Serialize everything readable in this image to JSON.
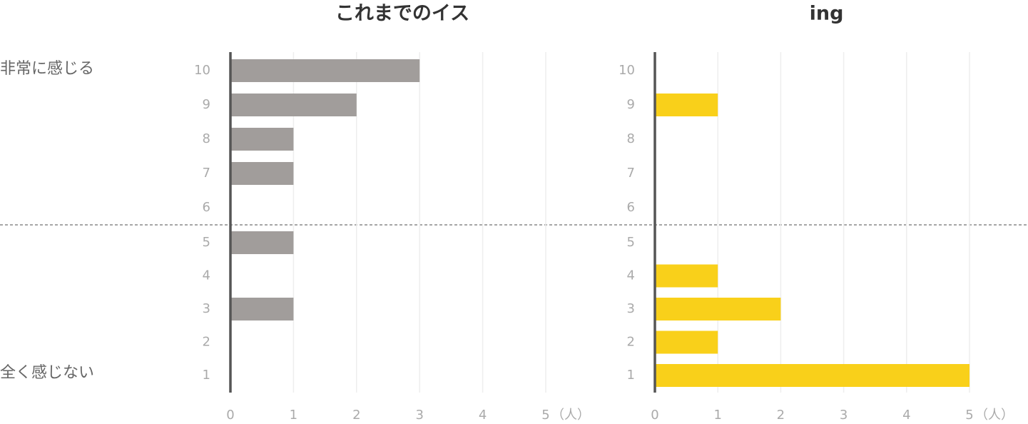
{
  "scale_labels": {
    "high": "非常に感じる",
    "low": "全く感じない"
  },
  "chart_data": [
    {
      "type": "bar",
      "orientation": "horizontal",
      "title": "これまでのイス",
      "categories": [
        "10",
        "9",
        "8",
        "7",
        "6",
        "5",
        "4",
        "3",
        "2",
        "1"
      ],
      "values": [
        3,
        2,
        1,
        1,
        0,
        1,
        0,
        1,
        0,
        0
      ],
      "color": "#a19d9b",
      "xlim": [
        0,
        5
      ],
      "xticks": [
        0,
        1,
        2,
        3,
        4,
        5
      ],
      "x_unit": "（人）",
      "grid": true
    },
    {
      "type": "bar",
      "orientation": "horizontal",
      "title": "ing",
      "categories": [
        "10",
        "9",
        "8",
        "7",
        "6",
        "5",
        "4",
        "3",
        "2",
        "1"
      ],
      "values": [
        0,
        1,
        0,
        0,
        0,
        0,
        1,
        2,
        1,
        5
      ],
      "color": "#f9d01a",
      "xlim": [
        0,
        5
      ],
      "xticks": [
        0,
        1,
        2,
        3,
        4,
        5
      ],
      "x_unit": "（人）",
      "grid": true
    }
  ]
}
